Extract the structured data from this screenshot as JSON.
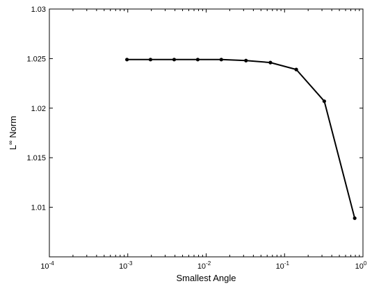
{
  "chart_data": {
    "type": "line",
    "title": "",
    "xlabel": "Smallest Angle",
    "ylabel_base": "L",
    "ylabel_superscript": "∞",
    "ylabel_rest": " Norm",
    "xscale": "log",
    "xlim": [
      0.0001,
      1
    ],
    "ylim": [
      1.005,
      1.03
    ],
    "grid": false,
    "x_ticks": [
      {
        "value": 0.0001,
        "base": "10",
        "exp": "-4"
      },
      {
        "value": 0.001,
        "base": "10",
        "exp": "-3"
      },
      {
        "value": 0.01,
        "base": "10",
        "exp": "-2"
      },
      {
        "value": 0.1,
        "base": "10",
        "exp": "-1"
      },
      {
        "value": 1,
        "base": "10",
        "exp": "0"
      }
    ],
    "y_ticks": [
      {
        "value": 1.01,
        "label": "1.01"
      },
      {
        "value": 1.015,
        "label": "1.015"
      },
      {
        "value": 1.02,
        "label": "1.02"
      },
      {
        "value": 1.025,
        "label": "1.025"
      },
      {
        "value": 1.03,
        "label": "1.03"
      }
    ],
    "series": [
      {
        "color": "#000000",
        "marker": "dot",
        "x": [
          0.000977,
          0.00195,
          0.00391,
          0.00781,
          0.0156,
          0.0322,
          0.066,
          0.141,
          0.321,
          0.785
        ],
        "y": [
          1.0249,
          1.0249,
          1.0249,
          1.0249,
          1.0249,
          1.0248,
          1.0246,
          1.0239,
          1.0207,
          1.0089
        ]
      }
    ]
  }
}
